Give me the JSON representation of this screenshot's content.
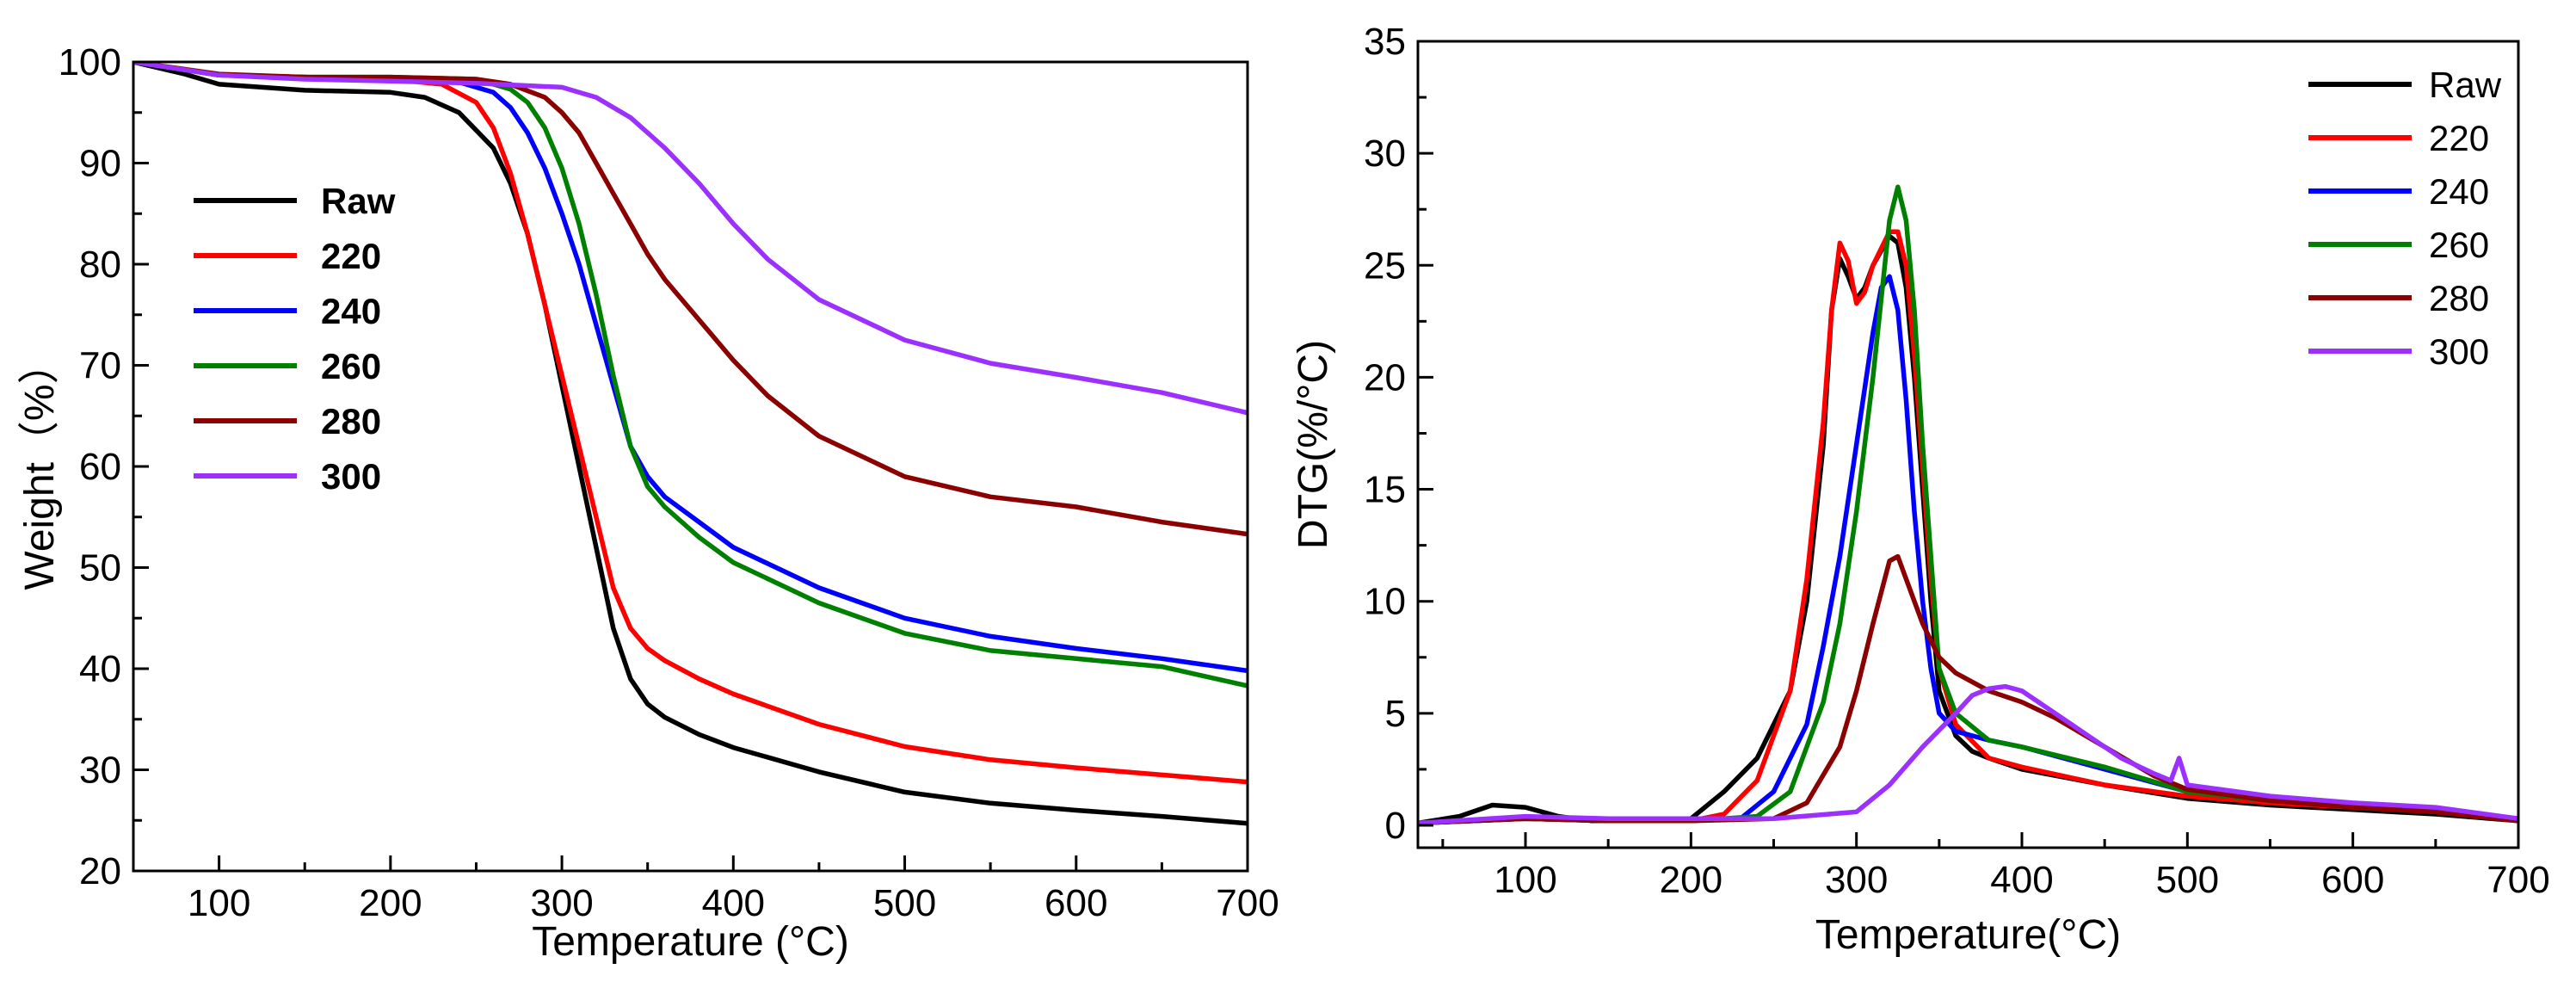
{
  "chart_data": [
    {
      "type": "line",
      "title": "",
      "xlabel": "Temperature (°C)",
      "ylabel": "Weight（%）",
      "xlim": [
        50,
        700
      ],
      "ylim": [
        20,
        100
      ],
      "xticks": [
        100,
        200,
        300,
        400,
        500,
        600,
        700
      ],
      "yticks": [
        20,
        30,
        40,
        50,
        60,
        70,
        80,
        90,
        100
      ],
      "legend_position": "middle-left",
      "legend_bold": true,
      "series": [
        {
          "name": "Raw",
          "color": "#000000",
          "x": [
            50,
            80,
            100,
            150,
            200,
            220,
            240,
            260,
            270,
            280,
            290,
            300,
            310,
            320,
            330,
            340,
            350,
            360,
            380,
            400,
            450,
            500,
            550,
            600,
            650,
            700
          ],
          "y": [
            100,
            98.8,
            97.8,
            97.2,
            97,
            96.5,
            95,
            91.5,
            88,
            83,
            76,
            68,
            60,
            52,
            44,
            39,
            36.5,
            35.2,
            33.5,
            32.2,
            29.8,
            27.8,
            26.7,
            26,
            25.4,
            24.7
          ]
        },
        {
          "name": "220",
          "color": "#ff0000",
          "x": [
            50,
            100,
            150,
            200,
            230,
            250,
            260,
            270,
            280,
            290,
            300,
            310,
            320,
            330,
            340,
            350,
            360,
            380,
            400,
            450,
            500,
            550,
            600,
            650,
            700
          ],
          "y": [
            100,
            98.7,
            98.5,
            98.3,
            97.8,
            96,
            93.5,
            89,
            83,
            76,
            69,
            62,
            55,
            48,
            44,
            42,
            40.8,
            39,
            37.5,
            34.5,
            32.3,
            31,
            30.2,
            29.5,
            28.8
          ]
        },
        {
          "name": "240",
          "color": "#0000ff",
          "x": [
            50,
            100,
            150,
            200,
            240,
            260,
            270,
            280,
            290,
            300,
            310,
            320,
            330,
            340,
            350,
            360,
            380,
            400,
            450,
            500,
            550,
            600,
            650,
            700
          ],
          "y": [
            100,
            98.7,
            98.5,
            98.3,
            98,
            97,
            95.5,
            93,
            89.5,
            85,
            80,
            74,
            68,
            62,
            59,
            57,
            54.5,
            52,
            48,
            45,
            43.2,
            42,
            41,
            39.8
          ]
        },
        {
          "name": "260",
          "color": "#008000",
          "x": [
            50,
            100,
            150,
            200,
            250,
            270,
            280,
            290,
            300,
            310,
            320,
            330,
            340,
            350,
            360,
            380,
            400,
            450,
            500,
            550,
            600,
            650,
            700
          ],
          "y": [
            100,
            98.7,
            98.5,
            98.5,
            98.3,
            97.3,
            96,
            93.5,
            89.5,
            84,
            77,
            69,
            62,
            58,
            56,
            53,
            50.5,
            46.5,
            43.5,
            41.8,
            41,
            40.2,
            38.3
          ]
        },
        {
          "name": "280",
          "color": "#8b0000",
          "x": [
            50,
            100,
            150,
            200,
            250,
            270,
            290,
            300,
            310,
            320,
            330,
            340,
            350,
            360,
            380,
            400,
            420,
            450,
            500,
            550,
            600,
            650,
            700
          ],
          "y": [
            100,
            98.8,
            98.5,
            98.5,
            98.3,
            97.8,
            96.5,
            95,
            93,
            90,
            87,
            84,
            81,
            78.5,
            74.5,
            70.5,
            67,
            63,
            59,
            57,
            56,
            54.5,
            53.3
          ]
        },
        {
          "name": "300",
          "color": "#9b30ff",
          "x": [
            50,
            100,
            150,
            200,
            250,
            300,
            320,
            340,
            360,
            380,
            400,
            420,
            450,
            500,
            550,
            600,
            650,
            700
          ],
          "y": [
            100,
            98.7,
            98.3,
            98.1,
            97.9,
            97.5,
            96.5,
            94.5,
            91.5,
            88,
            84,
            80.5,
            76.5,
            72.5,
            70.2,
            68.8,
            67.3,
            65.3
          ]
        }
      ]
    },
    {
      "type": "line",
      "title": "",
      "xlabel": "Temperature(°C)",
      "ylabel": "DTG(%/°C)",
      "xlim": [
        35,
        700
      ],
      "ylim": [
        -1,
        35
      ],
      "xticks": [
        100,
        200,
        300,
        400,
        500,
        600,
        700
      ],
      "yticks": [
        0,
        5,
        10,
        15,
        20,
        25,
        30,
        35
      ],
      "legend_position": "top-right",
      "legend_bold": false,
      "series": [
        {
          "name": "Raw",
          "color": "#000000",
          "x": [
            35,
            60,
            80,
            100,
            120,
            140,
            180,
            200,
            220,
            240,
            260,
            270,
            280,
            285,
            290,
            295,
            300,
            305,
            310,
            320,
            325,
            330,
            335,
            340,
            345,
            350,
            360,
            370,
            380,
            400,
            450,
            500,
            550,
            600,
            650,
            700
          ],
          "y": [
            0.1,
            0.4,
            0.9,
            0.8,
            0.4,
            0.2,
            0.2,
            0.3,
            1.5,
            3,
            6,
            10,
            17,
            23,
            25.3,
            24.5,
            23.5,
            24,
            25,
            26.3,
            26,
            24,
            20,
            15,
            10,
            6,
            4,
            3.3,
            3,
            2.5,
            1.8,
            1.2,
            0.9,
            0.7,
            0.5,
            0.2
          ]
        },
        {
          "name": "220",
          "color": "#ff0000",
          "x": [
            35,
            100,
            150,
            200,
            220,
            240,
            260,
            270,
            280,
            285,
            290,
            295,
            300,
            305,
            310,
            320,
            325,
            330,
            335,
            340,
            345,
            350,
            360,
            380,
            400,
            450,
            500,
            550,
            600,
            650,
            700
          ],
          "y": [
            0.1,
            0.3,
            0.2,
            0.2,
            0.5,
            2,
            6,
            11,
            18,
            23,
            26,
            25.2,
            23.3,
            23.8,
            25,
            26.5,
            26.5,
            25,
            21,
            16,
            11,
            7,
            4.5,
            3,
            2.6,
            1.8,
            1.3,
            1,
            0.8,
            0.6,
            0.2
          ]
        },
        {
          "name": "240",
          "color": "#0000ff",
          "x": [
            35,
            100,
            150,
            200,
            230,
            250,
            270,
            280,
            290,
            300,
            310,
            315,
            320,
            325,
            330,
            335,
            340,
            345,
            350,
            360,
            380,
            400,
            450,
            500,
            550,
            600,
            650,
            700
          ],
          "y": [
            0.1,
            0.3,
            0.2,
            0.2,
            0.3,
            1.5,
            4.5,
            8,
            12,
            17,
            22,
            24,
            24.5,
            23,
            19,
            14,
            10,
            7,
            5,
            4.2,
            3.8,
            3.5,
            2.5,
            1.5,
            1.1,
            0.9,
            0.7,
            0.2
          ]
        },
        {
          "name": "260",
          "color": "#008000",
          "x": [
            35,
            100,
            150,
            200,
            240,
            260,
            280,
            290,
            300,
            310,
            320,
            325,
            330,
            335,
            340,
            345,
            350,
            360,
            380,
            400,
            450,
            500,
            550,
            600,
            650,
            700
          ],
          "y": [
            0.1,
            0.3,
            0.2,
            0.2,
            0.4,
            1.5,
            5.5,
            9,
            14,
            20,
            27,
            28.5,
            27,
            23,
            17,
            12,
            7,
            5,
            3.8,
            3.5,
            2.6,
            1.5,
            1.1,
            0.9,
            0.7,
            0.2
          ]
        },
        {
          "name": "280",
          "color": "#8b0000",
          "x": [
            35,
            100,
            150,
            200,
            250,
            270,
            290,
            300,
            310,
            320,
            325,
            330,
            340,
            350,
            360,
            380,
            400,
            420,
            450,
            480,
            500,
            550,
            600,
            650,
            700
          ],
          "y": [
            0.1,
            0.3,
            0.2,
            0.2,
            0.3,
            1,
            3.5,
            6,
            9,
            11.8,
            12,
            11,
            9,
            7.5,
            6.8,
            6,
            5.5,
            4.8,
            3.5,
            2.2,
            1.6,
            1.1,
            0.8,
            0.6,
            0.2
          ]
        },
        {
          "name": "300",
          "color": "#9b30ff",
          "x": [
            35,
            100,
            150,
            200,
            250,
            300,
            320,
            340,
            360,
            370,
            380,
            390,
            400,
            420,
            440,
            460,
            480,
            490,
            495,
            500,
            550,
            600,
            650,
            700
          ],
          "y": [
            0.1,
            0.4,
            0.3,
            0.3,
            0.3,
            0.6,
            1.8,
            3.5,
            5,
            5.8,
            6.1,
            6.2,
            6,
            5,
            4,
            3,
            2.3,
            2,
            3,
            1.8,
            1.3,
            1,
            0.8,
            0.3
          ]
        }
      ]
    }
  ]
}
